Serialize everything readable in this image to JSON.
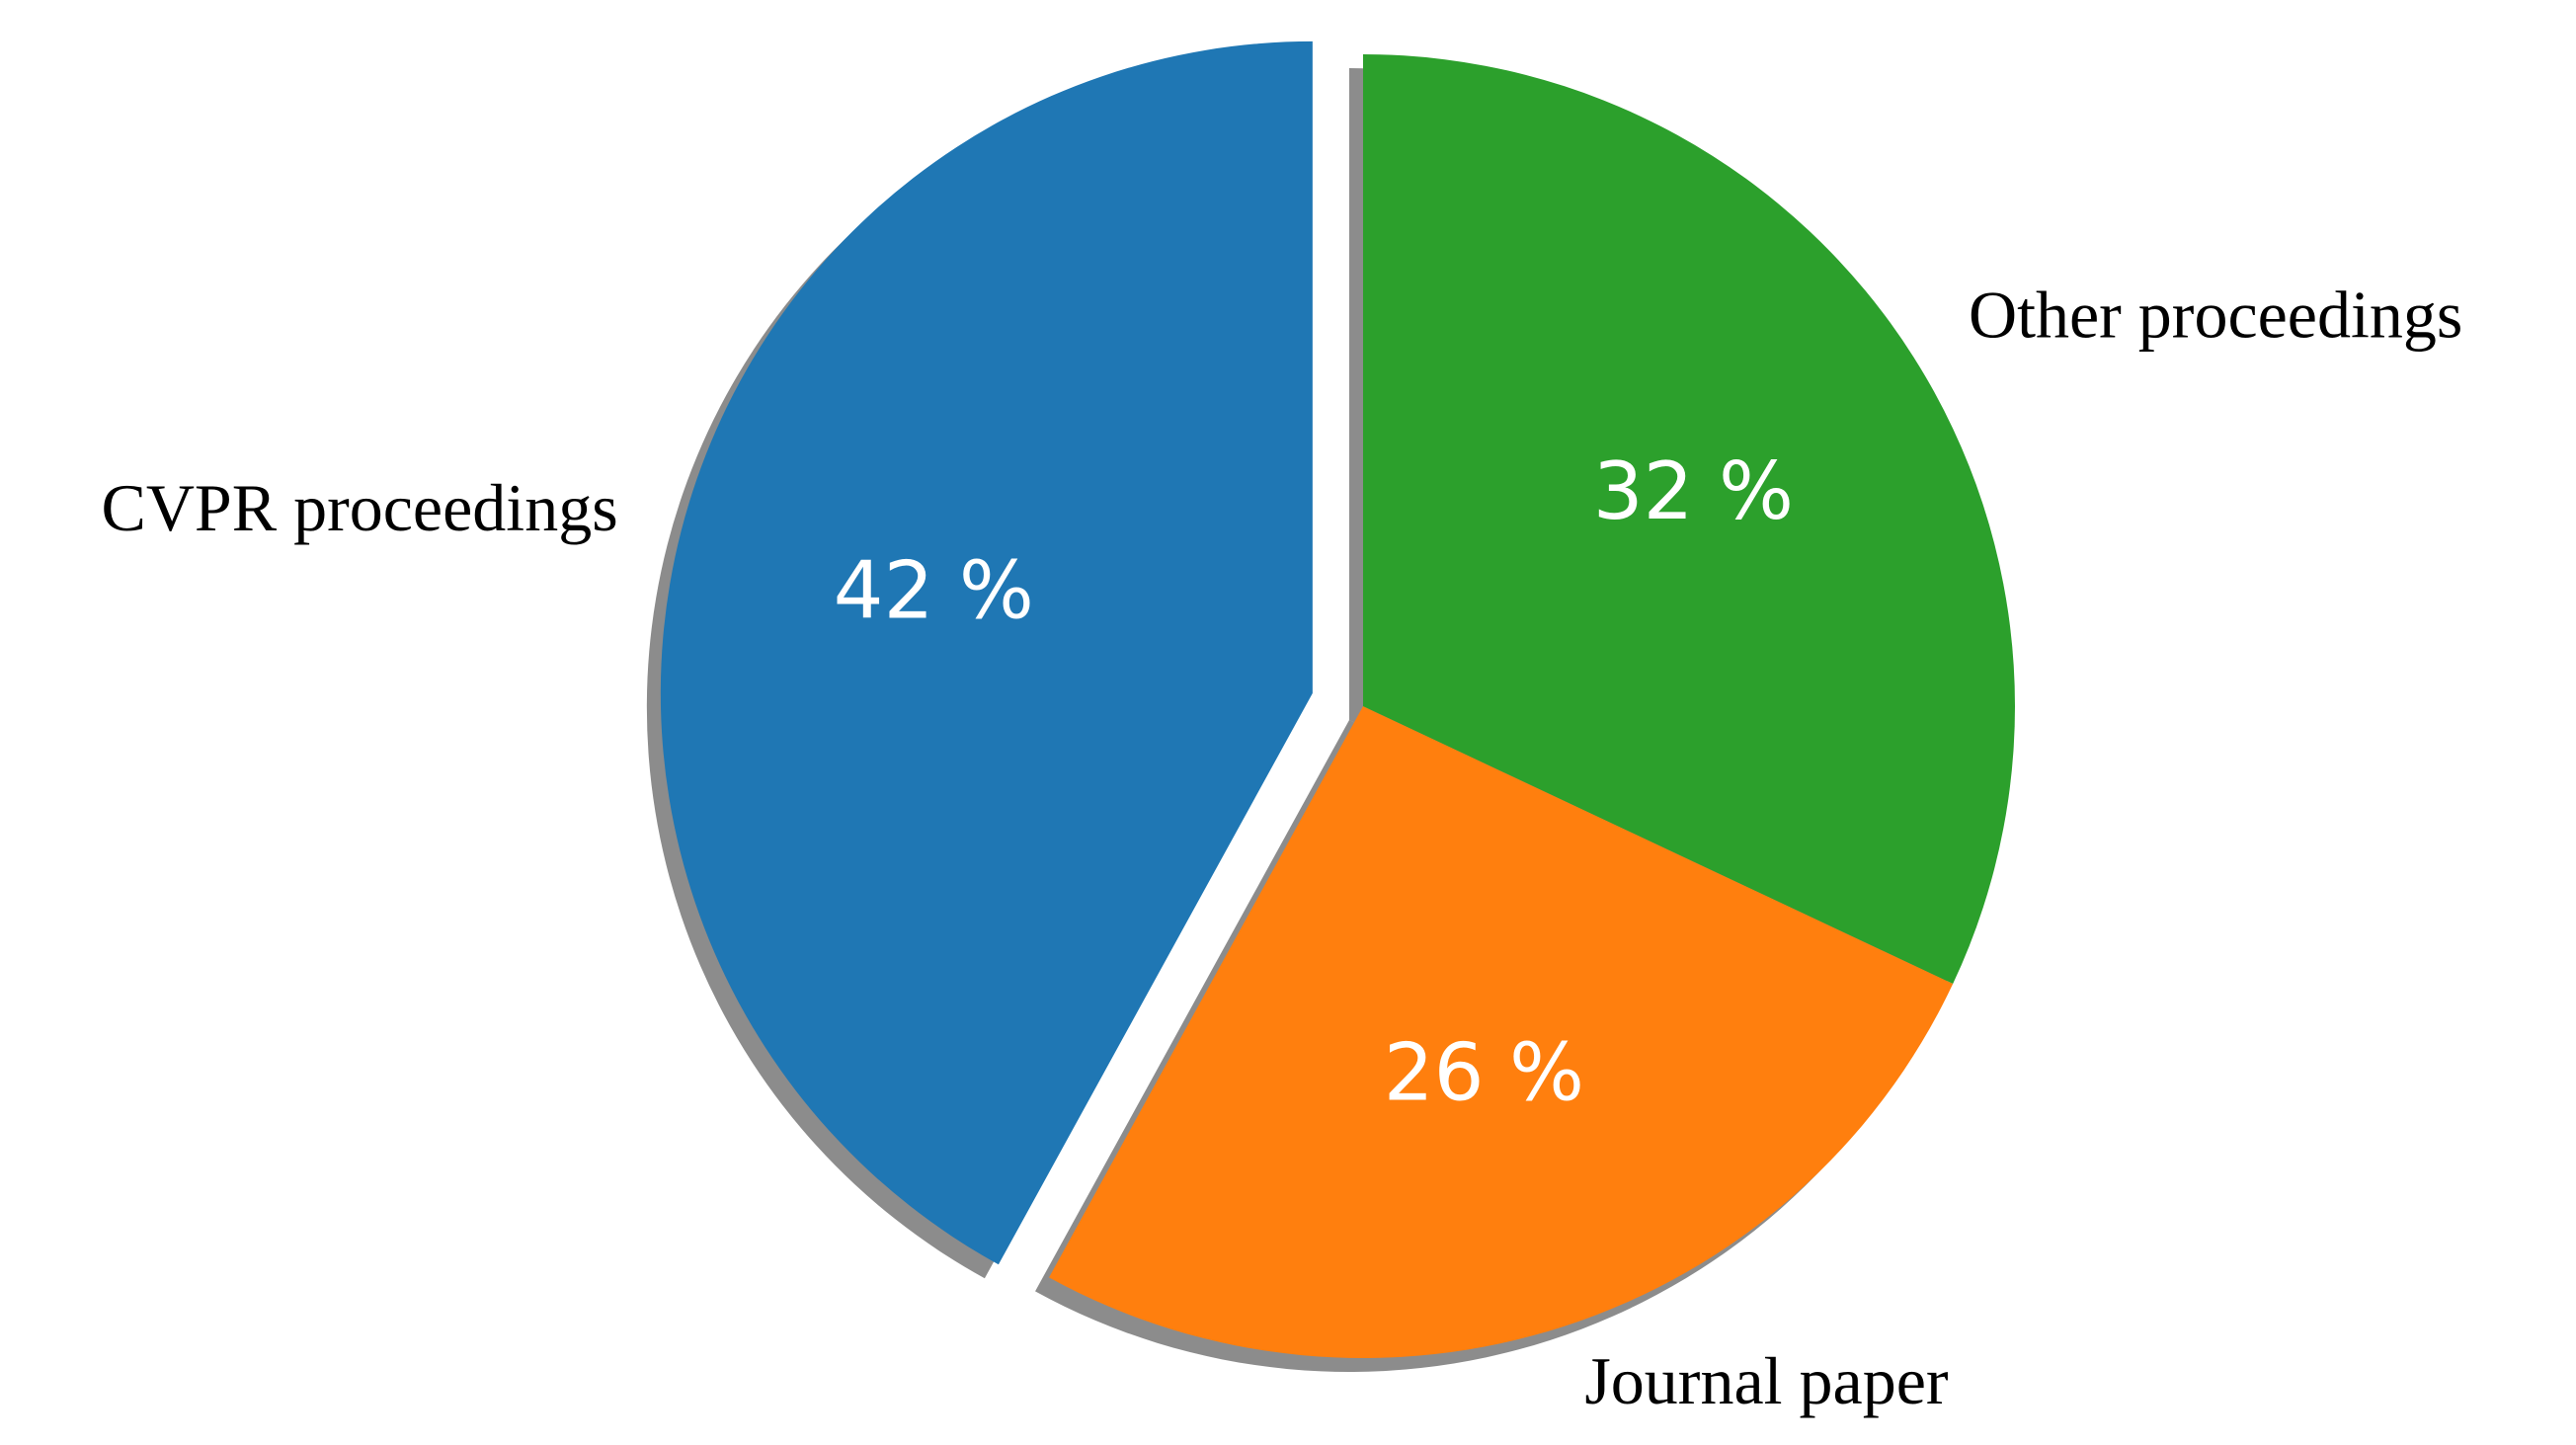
{
  "chart_data": {
    "type": "pie",
    "categories": [
      "CVPR proceedings",
      "Journal paper",
      "Other proceedings"
    ],
    "values": [
      42,
      26,
      32
    ],
    "value_labels": [
      "42 %",
      "26 %",
      "32 %"
    ],
    "colors": [
      "#1f77b4",
      "#ff7f0e",
      "#2ca02c"
    ],
    "shadow": true
  }
}
